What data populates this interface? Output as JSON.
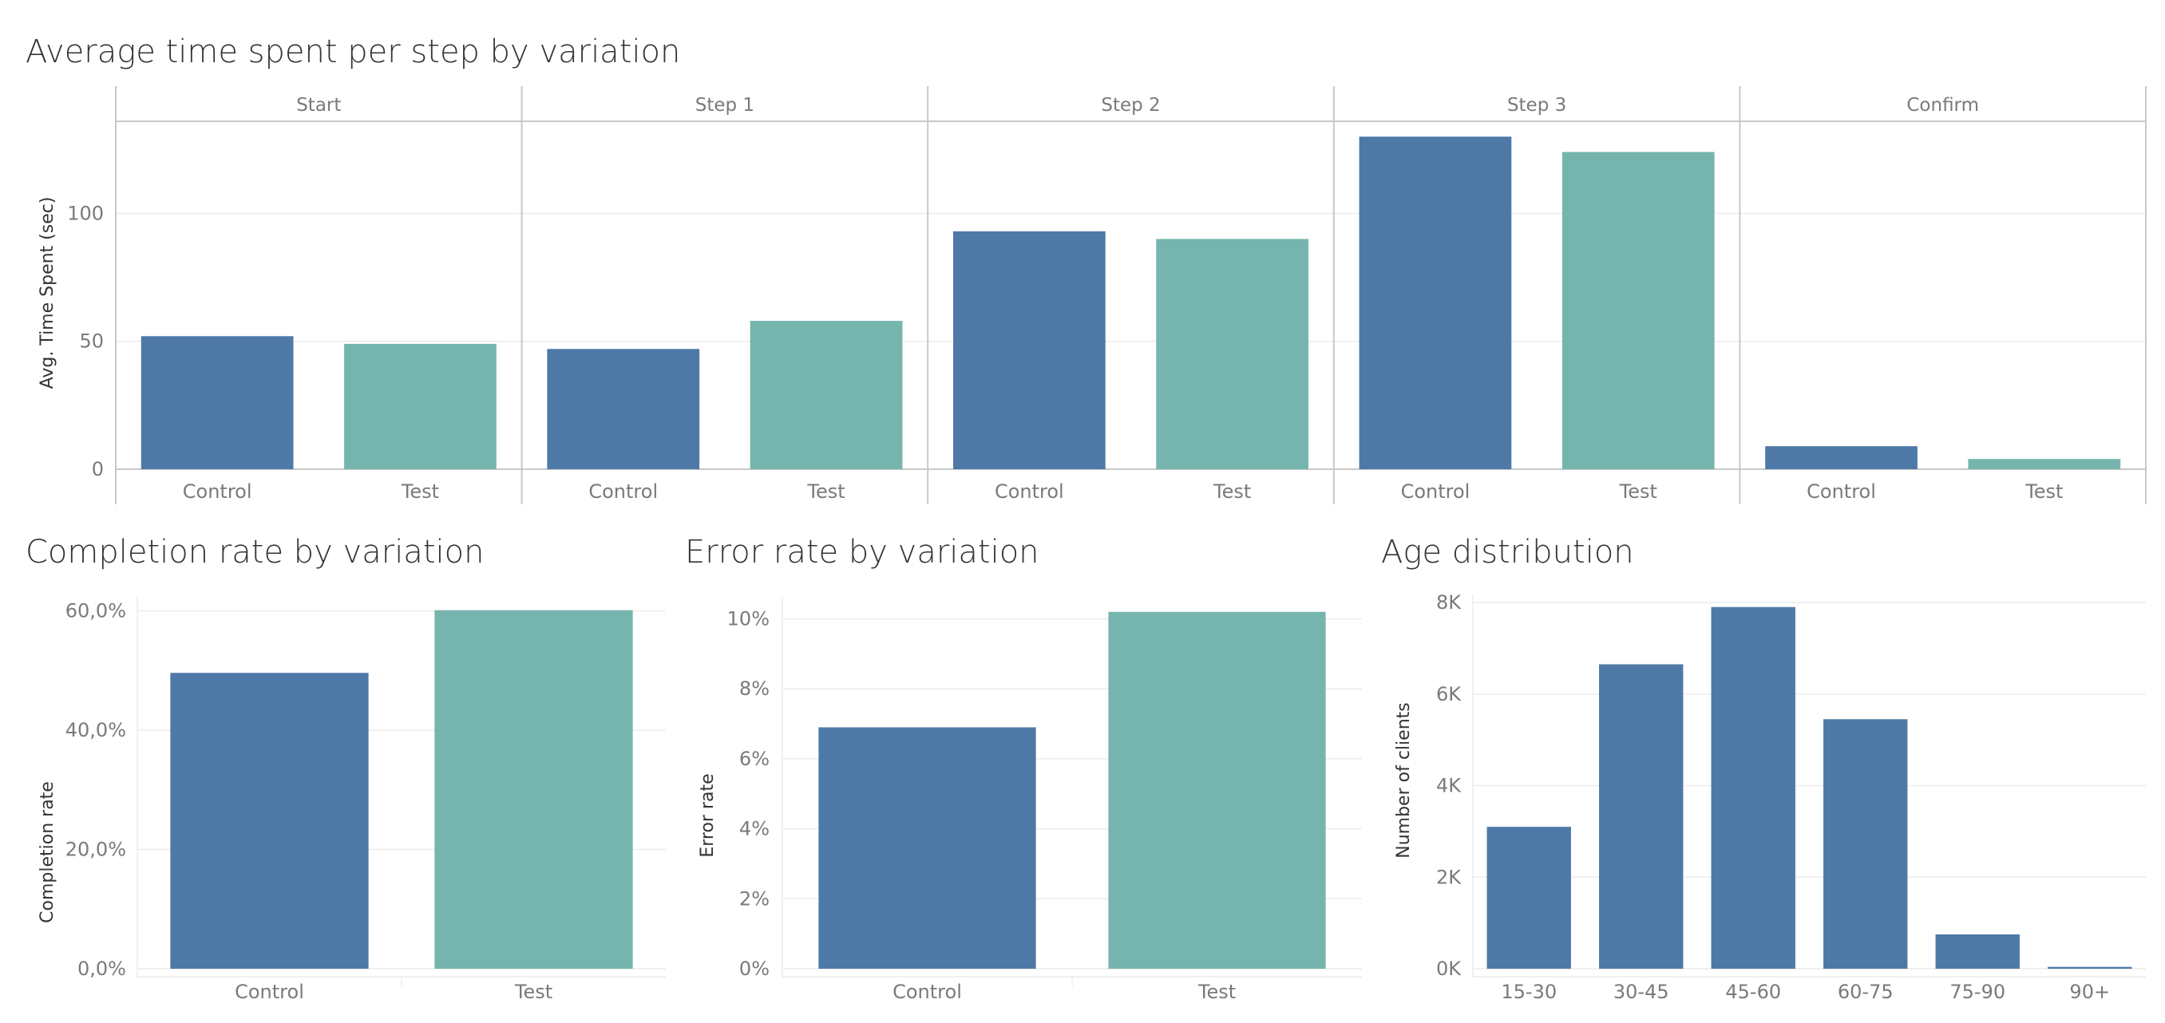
{
  "colors": {
    "control": "#4e79a7",
    "test": "#76b5ae",
    "grid": "#ececec",
    "divider": "#c8c8c8",
    "text_muted": "#7a7a7a",
    "text_dark": "#333333"
  },
  "charts": {
    "time": {
      "title": "Average time spent per step by variation",
      "ylabel": "Avg. Time Spent (sec)",
      "yticks": [
        "0",
        "50",
        "100"
      ],
      "panels": [
        "Start",
        "Step 1",
        "Step 2",
        "Step 3",
        "Confirm"
      ],
      "categories": [
        "Control",
        "Test"
      ]
    },
    "completion": {
      "title": "Completion rate by variation",
      "ylabel": "Completion rate",
      "yticks": [
        "0,0%",
        "20,0%",
        "40,0%",
        "60,0%"
      ],
      "categories": [
        "Control",
        "Test"
      ]
    },
    "error": {
      "title": "Error rate by variation",
      "ylabel": "Error rate",
      "yticks": [
        "0%",
        "2%",
        "4%",
        "6%",
        "8%",
        "10%"
      ],
      "categories": [
        "Control",
        "Test"
      ]
    },
    "age": {
      "title": "Age distribution",
      "ylabel": "Number of clients",
      "yticks": [
        "0K",
        "2K",
        "4K",
        "6K",
        "8K"
      ],
      "categories": [
        "15-30",
        "30-45",
        "45-60",
        "60-75",
        "75-90",
        "90+"
      ]
    }
  },
  "chart_data": [
    {
      "type": "bar",
      "title": "Average time spent per step by variation",
      "ylabel": "Avg. Time Spent (sec)",
      "facets": [
        "Start",
        "Step 1",
        "Step 2",
        "Step 3",
        "Confirm"
      ],
      "categories": [
        "Control",
        "Test"
      ],
      "values": [
        [
          52,
          49
        ],
        [
          47,
          58
        ],
        [
          93,
          90
        ],
        [
          130,
          124
        ],
        [
          9,
          4
        ]
      ],
      "ylim": [
        0,
        136
      ],
      "grid": true
    },
    {
      "type": "bar",
      "title": "Completion rate by variation",
      "ylabel": "Completion rate",
      "categories": [
        "Control",
        "Test"
      ],
      "values": [
        49.6,
        60.1
      ],
      "ylim": [
        0,
        61
      ],
      "grid": true
    },
    {
      "type": "bar",
      "title": "Error rate by variation",
      "ylabel": "Error rate",
      "categories": [
        "Control",
        "Test"
      ],
      "values": [
        6.9,
        10.2
      ],
      "ylim": [
        0,
        10.4
      ],
      "grid": true
    },
    {
      "type": "bar",
      "title": "Age distribution",
      "ylabel": "Number of clients",
      "categories": [
        "15-30",
        "30-45",
        "45-60",
        "60-75",
        "75-90",
        "90+"
      ],
      "values": [
        3100,
        6650,
        7900,
        5450,
        750,
        40
      ],
      "ylim": [
        0,
        8000
      ],
      "grid": true
    }
  ]
}
